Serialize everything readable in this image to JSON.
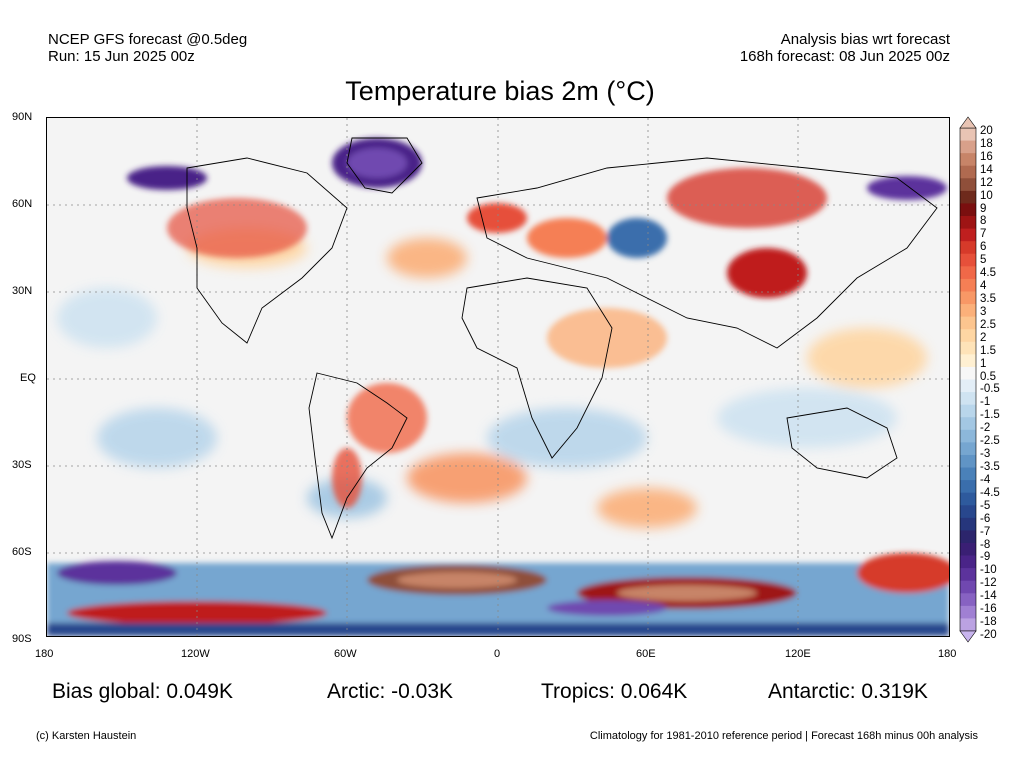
{
  "header": {
    "model_line": "NCEP GFS forecast @0.5deg",
    "run_line": "Run: 15 Jun 2025 00z",
    "type_line": "Analysis bias wrt forecast",
    "forecast_line": "168h forecast: 08 Jun 2025 00z"
  },
  "title": "Temperature bias 2m (°C)",
  "axes": {
    "lat_labels": [
      "90N",
      "60N",
      "30N",
      "EQ",
      "30S",
      "60S",
      "90S"
    ],
    "lon_labels": [
      "180",
      "120W",
      "60W",
      "0",
      "60E",
      "120E",
      "180"
    ]
  },
  "colorbar": {
    "labels": [
      "20",
      "18",
      "16",
      "14",
      "12",
      "10",
      "9",
      "8",
      "7",
      "6",
      "5",
      "4.5",
      "4",
      "3.5",
      "3",
      "2.5",
      "2",
      "1.5",
      "1",
      "0.5",
      "-0.5",
      "-1",
      "-1.5",
      "-2",
      "-2.5",
      "-3",
      "-3.5",
      "-4",
      "-4.5",
      "-5",
      "-6",
      "-7",
      "-8",
      "-9",
      "-10",
      "-12",
      "-14",
      "-16",
      "-18",
      "-20"
    ],
    "colors": [
      "#e9c4b4",
      "#d8a08a",
      "#c78468",
      "#b06a50",
      "#8f4f3a",
      "#6e2a1c",
      "#7a0f0f",
      "#9e1414",
      "#bf1f1f",
      "#d63a2a",
      "#e6503a",
      "#f06848",
      "#f57f55",
      "#f89866",
      "#fbb07a",
      "#fcc58f",
      "#fed6a3",
      "#fee3b8",
      "#fff0d2",
      "#f7f7f7",
      "#e3eef7",
      "#cfe3f1",
      "#b9d6eb",
      "#a3c7e3",
      "#8cb7da",
      "#76a6d0",
      "#6094c5",
      "#4a81b9",
      "#3a6eac",
      "#2e5a9d",
      "#28478d",
      "#26367c",
      "#2c256c",
      "#3a1f74",
      "#4a2488",
      "#5c339c",
      "#7048b0",
      "#8762c2",
      "#a080d3",
      "#bba2e2"
    ],
    "top_arrow_color": "#e9c4b4",
    "bottom_arrow_color": "#c8b4ee"
  },
  "stats": {
    "global": "Bias global: 0.049K",
    "arctic": "Arctic: -0.03K",
    "tropics": "Tropics: 0.064K",
    "antarctic": "Antarctic: 0.319K"
  },
  "footer": {
    "credit": "(c) Karsten Haustein",
    "note": "Climatology for 1981-2010 reference period | Forecast 168h minus 00h analysis"
  }
}
